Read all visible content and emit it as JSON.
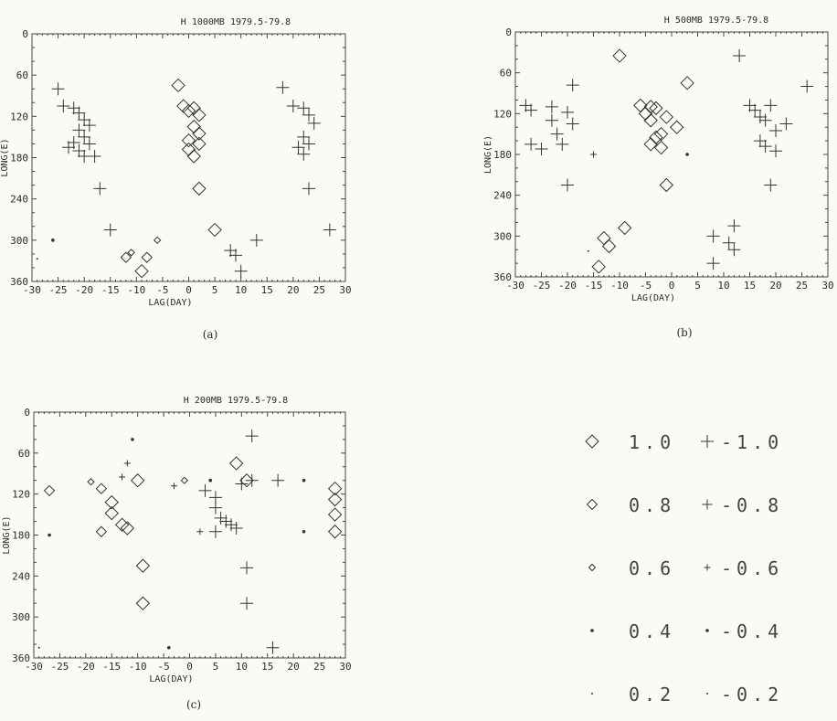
{
  "chart_data": [
    {
      "id": "a",
      "type": "scatter",
      "title": "H   1000MB   1979.5-79.8",
      "xlabel": "LAG(DAY)",
      "ylabel": "LONG(E)",
      "caption": "(a)",
      "xlim": [
        -30,
        30
      ],
      "ylim": [
        0,
        360
      ],
      "y_inverted": true,
      "xticks": [
        -30,
        -25,
        -20,
        -15,
        -10,
        -5,
        0,
        5,
        10,
        15,
        20,
        25,
        30
      ],
      "yticks": [
        0,
        60,
        120,
        180,
        240,
        300,
        360
      ],
      "tick_labels_x": [
        "-30",
        "-25",
        "-20",
        "-15",
        "-10",
        "-5",
        "0",
        "5",
        "10",
        "15",
        "20",
        "25",
        "30"
      ],
      "tick_labels_y": [
        "0",
        "60",
        "120",
        "180",
        "240",
        "300",
        "360"
      ],
      "points": [
        {
          "x": -25,
          "y": 80,
          "v": -1.0
        },
        {
          "x": -24,
          "y": 105,
          "v": -1.0
        },
        {
          "x": -22,
          "y": 108,
          "v": -1.0
        },
        {
          "x": -21,
          "y": 115,
          "v": -1.0
        },
        {
          "x": -20,
          "y": 125,
          "v": -1.0
        },
        {
          "x": -19,
          "y": 133,
          "v": -1.0
        },
        {
          "x": -21,
          "y": 140,
          "v": -1.0
        },
        {
          "x": -20,
          "y": 150,
          "v": -1.0
        },
        {
          "x": -22,
          "y": 158,
          "v": -1.0
        },
        {
          "x": -19,
          "y": 160,
          "v": -1.0
        },
        {
          "x": -23,
          "y": 165,
          "v": -1.0
        },
        {
          "x": -21,
          "y": 170,
          "v": -1.0
        },
        {
          "x": -20,
          "y": 178,
          "v": -1.0
        },
        {
          "x": -18,
          "y": 178,
          "v": -1.0
        },
        {
          "x": -17,
          "y": 225,
          "v": -1.0
        },
        {
          "x": -15,
          "y": 285,
          "v": -1.0
        },
        {
          "x": -29,
          "y": 327,
          "v": -0.2
        },
        {
          "x": -26,
          "y": 300,
          "v": -0.4
        },
        {
          "x": -12,
          "y": 325,
          "v": 0.8
        },
        {
          "x": -11,
          "y": 318,
          "v": 0.6
        },
        {
          "x": -8,
          "y": 325,
          "v": 0.8
        },
        {
          "x": -6,
          "y": 300,
          "v": 0.6
        },
        {
          "x": -9,
          "y": 345,
          "v": 1.0
        },
        {
          "x": -2,
          "y": 75,
          "v": 1.0
        },
        {
          "x": -1,
          "y": 105,
          "v": 1.0
        },
        {
          "x": 0,
          "y": 112,
          "v": 1.0
        },
        {
          "x": 1,
          "y": 108,
          "v": 1.0
        },
        {
          "x": 2,
          "y": 118,
          "v": 1.0
        },
        {
          "x": 1,
          "y": 135,
          "v": 1.0
        },
        {
          "x": 2,
          "y": 145,
          "v": 1.0
        },
        {
          "x": 0,
          "y": 155,
          "v": 1.0
        },
        {
          "x": 2,
          "y": 160,
          "v": 1.0
        },
        {
          "x": 0,
          "y": 168,
          "v": 1.0
        },
        {
          "x": 1,
          "y": 178,
          "v": 1.0
        },
        {
          "x": 2,
          "y": 225,
          "v": 1.0
        },
        {
          "x": 5,
          "y": 285,
          "v": 1.0
        },
        {
          "x": 8,
          "y": 315,
          "v": -1.0
        },
        {
          "x": 9,
          "y": 322,
          "v": -1.0
        },
        {
          "x": 10,
          "y": 345,
          "v": -1.0
        },
        {
          "x": 13,
          "y": 300,
          "v": -1.0
        },
        {
          "x": 18,
          "y": 78,
          "v": -1.0
        },
        {
          "x": 20,
          "y": 105,
          "v": -1.0
        },
        {
          "x": 22,
          "y": 108,
          "v": -1.0
        },
        {
          "x": 23,
          "y": 118,
          "v": -1.0
        },
        {
          "x": 24,
          "y": 130,
          "v": -1.0
        },
        {
          "x": 22,
          "y": 150,
          "v": -1.0
        },
        {
          "x": 23,
          "y": 160,
          "v": -1.0
        },
        {
          "x": 21,
          "y": 165,
          "v": -1.0
        },
        {
          "x": 22,
          "y": 175,
          "v": -1.0
        },
        {
          "x": 23,
          "y": 225,
          "v": -1.0
        },
        {
          "x": 27,
          "y": 285,
          "v": -1.0
        }
      ]
    },
    {
      "id": "b",
      "type": "scatter",
      "title": "H   500MB   1979.5-79.8",
      "xlabel": "LAG(DAY)",
      "ylabel": "LONG(E)",
      "caption": "(b)",
      "xlim": [
        -30,
        30
      ],
      "ylim": [
        0,
        360
      ],
      "y_inverted": true,
      "xticks": [
        -30,
        -25,
        -20,
        -15,
        -10,
        -5,
        0,
        5,
        10,
        15,
        20,
        25,
        30
      ],
      "yticks": [
        0,
        60,
        120,
        180,
        240,
        300,
        360
      ],
      "tick_labels_x": [
        "-30",
        "-25",
        "-20",
        "-15",
        "-10",
        "-5",
        "0",
        "5",
        "10",
        "15",
        "20",
        "25",
        "30"
      ],
      "tick_labels_y": [
        "0",
        "60",
        "120",
        "180",
        "240",
        "300",
        "360"
      ],
      "points": [
        {
          "x": -28,
          "y": 108,
          "v": -1.0
        },
        {
          "x": -27,
          "y": 115,
          "v": -1.0
        },
        {
          "x": -23,
          "y": 110,
          "v": -1.0
        },
        {
          "x": -20,
          "y": 118,
          "v": -1.0
        },
        {
          "x": -19,
          "y": 78,
          "v": -1.0
        },
        {
          "x": -19,
          "y": 135,
          "v": -1.0
        },
        {
          "x": -23,
          "y": 130,
          "v": -1.0
        },
        {
          "x": -22,
          "y": 150,
          "v": -1.0
        },
        {
          "x": -27,
          "y": 165,
          "v": -1.0
        },
        {
          "x": -25,
          "y": 172,
          "v": -1.0
        },
        {
          "x": -21,
          "y": 165,
          "v": -1.0
        },
        {
          "x": -20,
          "y": 225,
          "v": -1.0
        },
        {
          "x": -15,
          "y": 180,
          "v": -0.6
        },
        {
          "x": -16,
          "y": 322,
          "v": -0.2
        },
        {
          "x": -14,
          "y": 345,
          "v": 1.0
        },
        {
          "x": -13,
          "y": 303,
          "v": 1.0
        },
        {
          "x": -12,
          "y": 315,
          "v": 1.0
        },
        {
          "x": -9,
          "y": 288,
          "v": 1.0
        },
        {
          "x": -10,
          "y": 35,
          "v": 1.0
        },
        {
          "x": -6,
          "y": 108,
          "v": 1.0
        },
        {
          "x": -4,
          "y": 110,
          "v": 1.0
        },
        {
          "x": -3,
          "y": 112,
          "v": 1.0
        },
        {
          "x": -5,
          "y": 120,
          "v": 1.0
        },
        {
          "x": -4,
          "y": 130,
          "v": 1.0
        },
        {
          "x": -1,
          "y": 125,
          "v": 1.0
        },
        {
          "x": -3,
          "y": 155,
          "v": 1.0
        },
        {
          "x": -4,
          "y": 165,
          "v": 1.0
        },
        {
          "x": -2,
          "y": 170,
          "v": 1.0
        },
        {
          "x": -2,
          "y": 150,
          "v": 1.0
        },
        {
          "x": 1,
          "y": 140,
          "v": 1.0
        },
        {
          "x": -1,
          "y": 225,
          "v": 1.0
        },
        {
          "x": 3,
          "y": 75,
          "v": 1.0
        },
        {
          "x": 3,
          "y": 180,
          "v": -0.4
        },
        {
          "x": 8,
          "y": 300,
          "v": -1.0
        },
        {
          "x": 8,
          "y": 340,
          "v": -1.0
        },
        {
          "x": 11,
          "y": 310,
          "v": -1.0
        },
        {
          "x": 12,
          "y": 320,
          "v": -1.0
        },
        {
          "x": 12,
          "y": 285,
          "v": -1.0
        },
        {
          "x": 13,
          "y": 35,
          "v": -1.0
        },
        {
          "x": 15,
          "y": 108,
          "v": -1.0
        },
        {
          "x": 16,
          "y": 115,
          "v": -1.0
        },
        {
          "x": 17,
          "y": 125,
          "v": -1.0
        },
        {
          "x": 19,
          "y": 108,
          "v": -1.0
        },
        {
          "x": 18,
          "y": 130,
          "v": -1.0
        },
        {
          "x": 20,
          "y": 145,
          "v": -1.0
        },
        {
          "x": 17,
          "y": 160,
          "v": -1.0
        },
        {
          "x": 18,
          "y": 168,
          "v": -1.0
        },
        {
          "x": 20,
          "y": 175,
          "v": -1.0
        },
        {
          "x": 22,
          "y": 135,
          "v": -1.0
        },
        {
          "x": 19,
          "y": 225,
          "v": -1.0
        },
        {
          "x": 26,
          "y": 80,
          "v": -1.0
        }
      ]
    },
    {
      "id": "c",
      "type": "scatter",
      "title": "H   200MB   1979.5-79.8",
      "xlabel": "LAG(DAY)",
      "ylabel": "LONG(E)",
      "caption": "(c)",
      "xlim": [
        -30,
        30
      ],
      "ylim": [
        0,
        360
      ],
      "y_inverted": true,
      "xticks": [
        -30,
        -25,
        -20,
        -15,
        -10,
        -5,
        0,
        5,
        10,
        15,
        20,
        25,
        30
      ],
      "yticks": [
        0,
        60,
        120,
        180,
        240,
        300,
        360
      ],
      "tick_labels_x": [
        "-30",
        "-25",
        "-20",
        "-15",
        "-10",
        "-5",
        "0",
        "5",
        "10",
        "15",
        "20",
        "25",
        "30"
      ],
      "tick_labels_y": [
        "0",
        "60",
        "120",
        "180",
        "240",
        "300",
        "360"
      ],
      "points": [
        {
          "x": -27,
          "y": 115,
          "v": 0.8
        },
        {
          "x": -27,
          "y": 180,
          "v": -0.4
        },
        {
          "x": -29,
          "y": 345,
          "v": -0.2
        },
        {
          "x": -19,
          "y": 102,
          "v": 0.6
        },
        {
          "x": -17,
          "y": 112,
          "v": 0.8
        },
        {
          "x": -17,
          "y": 175,
          "v": 0.8
        },
        {
          "x": -15,
          "y": 148,
          "v": 1.0
        },
        {
          "x": -15,
          "y": 132,
          "v": 1.0
        },
        {
          "x": -13,
          "y": 95,
          "v": -0.6
        },
        {
          "x": -12,
          "y": 75,
          "v": -0.6
        },
        {
          "x": -13,
          "y": 165,
          "v": 1.0
        },
        {
          "x": -12,
          "y": 170,
          "v": 1.0
        },
        {
          "x": -10,
          "y": 100,
          "v": 1.0
        },
        {
          "x": -9,
          "y": 225,
          "v": 1.0
        },
        {
          "x": -9,
          "y": 280,
          "v": 1.0
        },
        {
          "x": -11,
          "y": 40,
          "v": 0.4
        },
        {
          "x": -3,
          "y": 108,
          "v": -0.6
        },
        {
          "x": -1,
          "y": 100,
          "v": 0.6
        },
        {
          "x": -4,
          "y": 345,
          "v": 0.4
        },
        {
          "x": 2,
          "y": 175,
          "v": -0.6
        },
        {
          "x": 3,
          "y": 115,
          "v": -1.0
        },
        {
          "x": 4,
          "y": 100,
          "v": 0.4
        },
        {
          "x": 5,
          "y": 125,
          "v": -1.0
        },
        {
          "x": 5,
          "y": 140,
          "v": -1.0
        },
        {
          "x": 6,
          "y": 155,
          "v": -1.0
        },
        {
          "x": 5,
          "y": 175,
          "v": -1.0
        },
        {
          "x": 7,
          "y": 160,
          "v": -1.0
        },
        {
          "x": 8,
          "y": 165,
          "v": -1.0
        },
        {
          "x": 9,
          "y": 170,
          "v": -1.0
        },
        {
          "x": 9,
          "y": 75,
          "v": 1.0
        },
        {
          "x": 11,
          "y": 100,
          "v": 1.0
        },
        {
          "x": 10,
          "y": 105,
          "v": -1.0
        },
        {
          "x": 12,
          "y": 100,
          "v": -1.0
        },
        {
          "x": 12,
          "y": 35,
          "v": -1.0
        },
        {
          "x": 11,
          "y": 228,
          "v": -1.0
        },
        {
          "x": 11,
          "y": 280,
          "v": -1.0
        },
        {
          "x": 17,
          "y": 100,
          "v": -1.0
        },
        {
          "x": 16,
          "y": 345,
          "v": -1.0
        },
        {
          "x": 22,
          "y": 100,
          "v": -0.4
        },
        {
          "x": 22,
          "y": 175,
          "v": -0.4
        },
        {
          "x": 28,
          "y": 112,
          "v": 1.0
        },
        {
          "x": 28,
          "y": 128,
          "v": 1.0
        },
        {
          "x": 28,
          "y": 150,
          "v": 1.0
        },
        {
          "x": 28,
          "y": 175,
          "v": 1.0
        }
      ]
    }
  ],
  "legend": {
    "items": [
      {
        "symbol": "diamond",
        "size_value": 1.0,
        "label": "1.0"
      },
      {
        "symbol": "plus",
        "size_value": -1.0,
        "label": "-1.0"
      },
      {
        "symbol": "diamond",
        "size_value": 0.8,
        "label": "0.8"
      },
      {
        "symbol": "plus",
        "size_value": -0.8,
        "label": "-0.8"
      },
      {
        "symbol": "diamond",
        "size_value": 0.6,
        "label": "0.6"
      },
      {
        "symbol": "plus",
        "size_value": -0.6,
        "label": "-0.6"
      },
      {
        "symbol": "diamond",
        "size_value": 0.4,
        "label": "0.4"
      },
      {
        "symbol": "plus",
        "size_value": -0.4,
        "label": "-0.4"
      },
      {
        "symbol": "diamond",
        "size_value": 0.2,
        "label": "0.2"
      },
      {
        "symbol": "plus",
        "size_value": -0.2,
        "label": "-0.2"
      }
    ]
  }
}
